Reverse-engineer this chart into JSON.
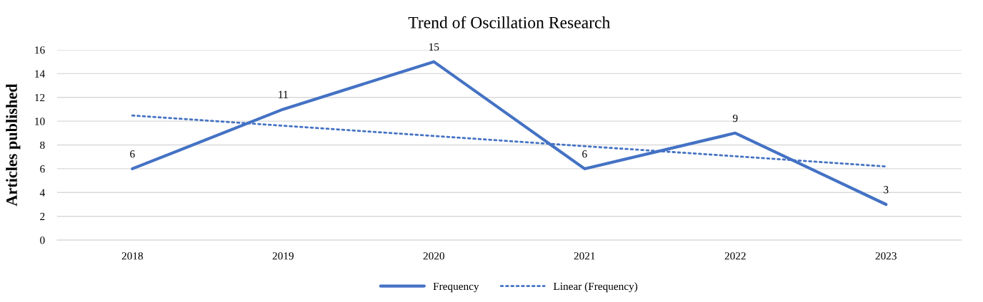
{
  "chart_data": {
    "type": "line",
    "title": "Trend of Oscillation Research",
    "ylabel": "Articles published",
    "categories": [
      "2018",
      "2019",
      "2020",
      "2021",
      "2022",
      "2023"
    ],
    "series": [
      {
        "name": "Frequency",
        "color": "#4472c4",
        "values": [
          6,
          11,
          15,
          6,
          9,
          3
        ],
        "value_labels": [
          "6",
          "11",
          "15",
          "6",
          "9",
          "3"
        ],
        "line_style": "solid"
      },
      {
        "name": "Linear (Frequency)",
        "color": "#4472c4",
        "values": [
          10.48,
          9.62,
          8.76,
          7.9,
          7.05,
          6.19
        ],
        "line_style": "dotted"
      }
    ],
    "ylim": [
      0,
      16
    ],
    "yticks": [
      0,
      2,
      4,
      6,
      8,
      10,
      12,
      14,
      16
    ],
    "grid": "y",
    "legend": "bottom",
    "marker": "none"
  }
}
